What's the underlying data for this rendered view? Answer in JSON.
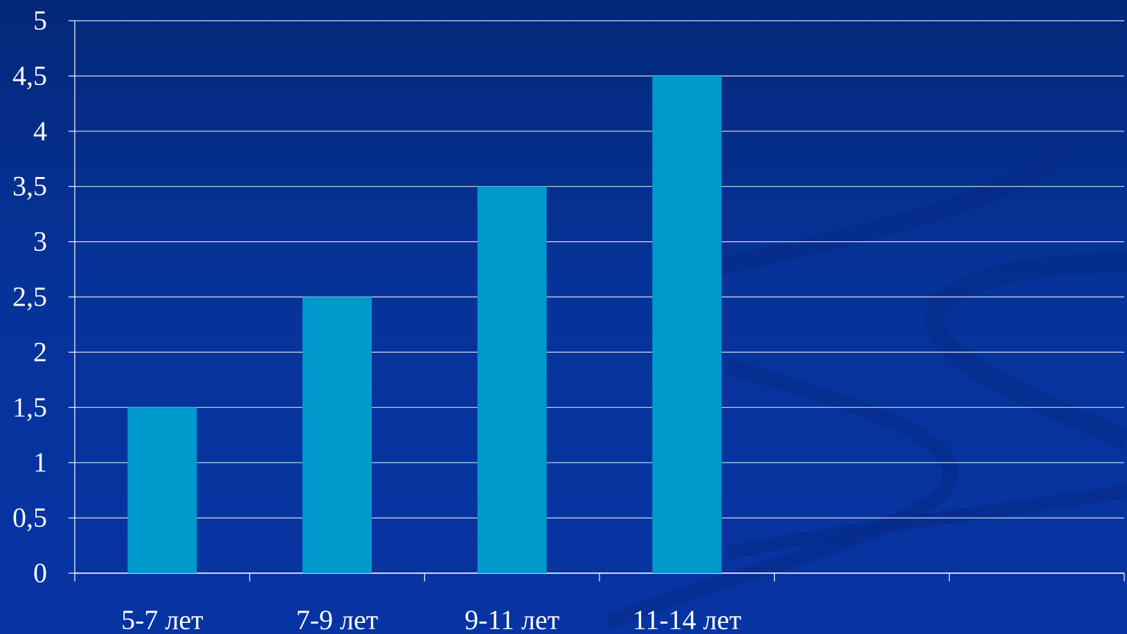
{
  "colors": {
    "background_top": "#04287a",
    "background_bottom": "#0734a3",
    "bar": "#0099cc",
    "grid": "#ffffff",
    "text": "#ffffff"
  },
  "chart_data": {
    "type": "bar",
    "title": "",
    "xlabel": "",
    "ylabel": "",
    "categories": [
      "5-7 лет",
      "7-9 лет",
      "9-11 лет",
      "11-14 лет",
      "",
      ""
    ],
    "values": [
      1.5,
      2.5,
      3.5,
      4.5,
      null,
      null
    ],
    "y_tick_labels": [
      "0",
      "0,5",
      "1",
      "1,5",
      "2",
      "2,5",
      "3",
      "3,5",
      "4",
      "4,5",
      "5"
    ],
    "ylim": [
      0,
      5
    ],
    "y_step": 0.5,
    "grid": true,
    "legend": "none"
  }
}
